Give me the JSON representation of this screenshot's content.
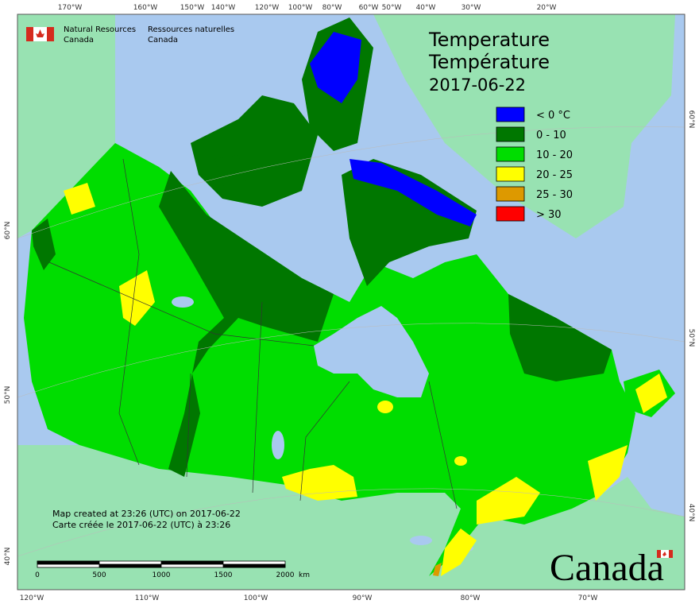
{
  "logo": {
    "en_line1": "Natural Resources",
    "en_line2": "Canada",
    "fr_line1": "Ressources naturelles",
    "fr_line2": "Canada"
  },
  "title": {
    "line1": "Temperature",
    "line2": "Température",
    "date": "2017-06-22"
  },
  "legend": [
    {
      "label": "< 0 °C",
      "color": "#0000ff"
    },
    {
      "label": "0 - 10",
      "color": "#007700"
    },
    {
      "label": "10 - 20",
      "color": "#00dd00"
    },
    {
      "label": "20 - 25",
      "color": "#ffff00"
    },
    {
      "label": "25 - 30",
      "color": "#dd9900"
    },
    {
      "label": "> 30",
      "color": "#ff0000"
    }
  ],
  "axes": {
    "top": [
      "170°W",
      "160°W",
      "150°W",
      "140°W",
      "120°W",
      "100°W",
      "80°W",
      "60°W",
      "50°W",
      "40°W",
      "30°W",
      "20°W"
    ],
    "bottom": [
      "120°W",
      "110°W",
      "100°W",
      "90°W",
      "80°W",
      "70°W"
    ],
    "left": [
      "60°N",
      "50°N",
      "40°N"
    ],
    "right": [
      "60°N",
      "50°N",
      "40°N"
    ]
  },
  "credits": [
    "Map created at 23:26 (UTC) on 2017-06-22",
    "Carte créée le 2017-06-22 (UTC) à 23:26"
  ],
  "scale_bar": {
    "labels": [
      "0",
      "500",
      "1000",
      "1500",
      "2000"
    ],
    "unit": "km"
  },
  "wordmark": "Canada"
}
